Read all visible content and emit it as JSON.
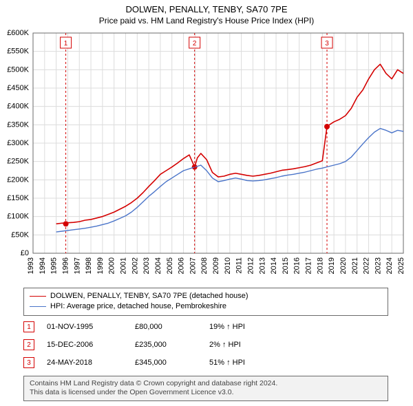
{
  "title": "DOLWEN, PENALLY, TENBY, SA70 7PE",
  "subtitle": "Price paid vs. HM Land Registry's House Price Index (HPI)",
  "chart": {
    "type": "line",
    "plot_bg": "#ffffff",
    "grid_color": "#dcdcdc",
    "axis_color": "#6a6a6a",
    "label_color": "#000000",
    "label_fontsize": 11,
    "xlim": [
      1993,
      2025
    ],
    "ylim": [
      0,
      600000
    ],
    "ytick_step": 50000,
    "ytick_labels": [
      "£0",
      "£50K",
      "£100K",
      "£150K",
      "£200K",
      "£250K",
      "£300K",
      "£350K",
      "£400K",
      "£450K",
      "£500K",
      "£550K",
      "£600K"
    ],
    "xtick_step": 1,
    "xtick_labels": [
      "1993",
      "1994",
      "1995",
      "1996",
      "1997",
      "1998",
      "1999",
      "2000",
      "2001",
      "2002",
      "2003",
      "2004",
      "2005",
      "2006",
      "2007",
      "2008",
      "2009",
      "2010",
      "2011",
      "2012",
      "2013",
      "2014",
      "2015",
      "2016",
      "2017",
      "2018",
      "2019",
      "2020",
      "2021",
      "2022",
      "2023",
      "2024",
      "2025"
    ],
    "series": [
      {
        "name": "DOLWEN, PENALLY, TENBY, SA70 7PE (detached house)",
        "color": "#d40000",
        "line_width": 1.6,
        "data": [
          [
            1995.0,
            80000
          ],
          [
            1995.5,
            82000
          ],
          [
            1996.0,
            83000
          ],
          [
            1996.5,
            84000
          ],
          [
            1997.0,
            86000
          ],
          [
            1997.5,
            90000
          ],
          [
            1998.0,
            92000
          ],
          [
            1998.5,
            96000
          ],
          [
            1999.0,
            100000
          ],
          [
            1999.5,
            106000
          ],
          [
            2000.0,
            112000
          ],
          [
            2000.5,
            120000
          ],
          [
            2001.0,
            128000
          ],
          [
            2001.5,
            138000
          ],
          [
            2002.0,
            150000
          ],
          [
            2002.5,
            165000
          ],
          [
            2003.0,
            182000
          ],
          [
            2003.5,
            198000
          ],
          [
            2004.0,
            215000
          ],
          [
            2004.5,
            225000
          ],
          [
            2005.0,
            235000
          ],
          [
            2005.5,
            246000
          ],
          [
            2006.0,
            258000
          ],
          [
            2006.5,
            268000
          ],
          [
            2006.96,
            235000
          ],
          [
            2007.2,
            260000
          ],
          [
            2007.5,
            272000
          ],
          [
            2008.0,
            255000
          ],
          [
            2008.5,
            220000
          ],
          [
            2009.0,
            208000
          ],
          [
            2009.5,
            210000
          ],
          [
            2010.0,
            215000
          ],
          [
            2010.5,
            218000
          ],
          [
            2011.0,
            215000
          ],
          [
            2011.5,
            212000
          ],
          [
            2012.0,
            210000
          ],
          [
            2012.5,
            212000
          ],
          [
            2013.0,
            215000
          ],
          [
            2013.5,
            218000
          ],
          [
            2014.0,
            222000
          ],
          [
            2014.5,
            226000
          ],
          [
            2015.0,
            228000
          ],
          [
            2015.5,
            230000
          ],
          [
            2016.0,
            233000
          ],
          [
            2016.5,
            236000
          ],
          [
            2017.0,
            240000
          ],
          [
            2017.5,
            246000
          ],
          [
            2018.0,
            252000
          ],
          [
            2018.4,
            345000
          ],
          [
            2018.7,
            352000
          ],
          [
            2019.0,
            358000
          ],
          [
            2019.5,
            365000
          ],
          [
            2020.0,
            375000
          ],
          [
            2020.5,
            395000
          ],
          [
            2021.0,
            425000
          ],
          [
            2021.5,
            445000
          ],
          [
            2022.0,
            475000
          ],
          [
            2022.5,
            500000
          ],
          [
            2023.0,
            515000
          ],
          [
            2023.5,
            490000
          ],
          [
            2024.0,
            475000
          ],
          [
            2024.5,
            500000
          ],
          [
            2025.0,
            490000
          ]
        ]
      },
      {
        "name": "HPI: Average price, detached house, Pembrokeshire",
        "color": "#4a74c9",
        "line_width": 1.4,
        "data": [
          [
            1995.0,
            58000
          ],
          [
            1995.5,
            60000
          ],
          [
            1996.0,
            62000
          ],
          [
            1996.5,
            64000
          ],
          [
            1997.0,
            66000
          ],
          [
            1997.5,
            68000
          ],
          [
            1998.0,
            71000
          ],
          [
            1998.5,
            74000
          ],
          [
            1999.0,
            78000
          ],
          [
            1999.5,
            82000
          ],
          [
            2000.0,
            88000
          ],
          [
            2000.5,
            95000
          ],
          [
            2001.0,
            102000
          ],
          [
            2001.5,
            112000
          ],
          [
            2002.0,
            125000
          ],
          [
            2002.5,
            140000
          ],
          [
            2003.0,
            155000
          ],
          [
            2003.5,
            168000
          ],
          [
            2004.0,
            182000
          ],
          [
            2004.5,
            195000
          ],
          [
            2005.0,
            205000
          ],
          [
            2005.5,
            215000
          ],
          [
            2006.0,
            225000
          ],
          [
            2006.5,
            230000
          ],
          [
            2007.0,
            235000
          ],
          [
            2007.5,
            240000
          ],
          [
            2008.0,
            225000
          ],
          [
            2008.5,
            205000
          ],
          [
            2009.0,
            195000
          ],
          [
            2009.5,
            198000
          ],
          [
            2010.0,
            202000
          ],
          [
            2010.5,
            205000
          ],
          [
            2011.0,
            202000
          ],
          [
            2011.5,
            198000
          ],
          [
            2012.0,
            197000
          ],
          [
            2012.5,
            198000
          ],
          [
            2013.0,
            200000
          ],
          [
            2013.5,
            203000
          ],
          [
            2014.0,
            206000
          ],
          [
            2014.5,
            210000
          ],
          [
            2015.0,
            213000
          ],
          [
            2015.5,
            215000
          ],
          [
            2016.0,
            218000
          ],
          [
            2016.5,
            221000
          ],
          [
            2017.0,
            225000
          ],
          [
            2017.5,
            229000
          ],
          [
            2018.0,
            232000
          ],
          [
            2018.5,
            236000
          ],
          [
            2019.0,
            240000
          ],
          [
            2019.5,
            244000
          ],
          [
            2020.0,
            250000
          ],
          [
            2020.5,
            262000
          ],
          [
            2021.0,
            280000
          ],
          [
            2021.5,
            298000
          ],
          [
            2022.0,
            315000
          ],
          [
            2022.5,
            330000
          ],
          [
            2023.0,
            340000
          ],
          [
            2023.5,
            335000
          ],
          [
            2024.0,
            328000
          ],
          [
            2024.5,
            335000
          ],
          [
            2025.0,
            332000
          ]
        ]
      }
    ],
    "flags": [
      {
        "n": "1",
        "x": 1995.83,
        "color": "#d40000",
        "dot_y": 80000
      },
      {
        "n": "2",
        "x": 2006.96,
        "color": "#d40000",
        "dot_y": 235000
      },
      {
        "n": "3",
        "x": 2018.4,
        "color": "#d40000",
        "dot_y": 345000
      }
    ]
  },
  "legend": {
    "items": [
      {
        "label": "DOLWEN, PENALLY, TENBY, SA70 7PE (detached house)",
        "color": "#d40000",
        "width": 1.6
      },
      {
        "label": "HPI: Average price, detached house, Pembrokeshire",
        "color": "#4a74c9",
        "width": 1.4
      }
    ]
  },
  "events": [
    {
      "n": "1",
      "color": "#d40000",
      "date": "01-NOV-1995",
      "price": "£80,000",
      "hpi": "19% ↑ HPI"
    },
    {
      "n": "2",
      "color": "#d40000",
      "date": "15-DEC-2006",
      "price": "£235,000",
      "hpi": "2% ↑ HPI"
    },
    {
      "n": "3",
      "color": "#d40000",
      "date": "24-MAY-2018",
      "price": "£345,000",
      "hpi": "51% ↑ HPI"
    }
  ],
  "footer_line1": "Contains HM Land Registry data © Crown copyright and database right 2024.",
  "footer_line2": "This data is licensed under the Open Government Licence v3.0."
}
